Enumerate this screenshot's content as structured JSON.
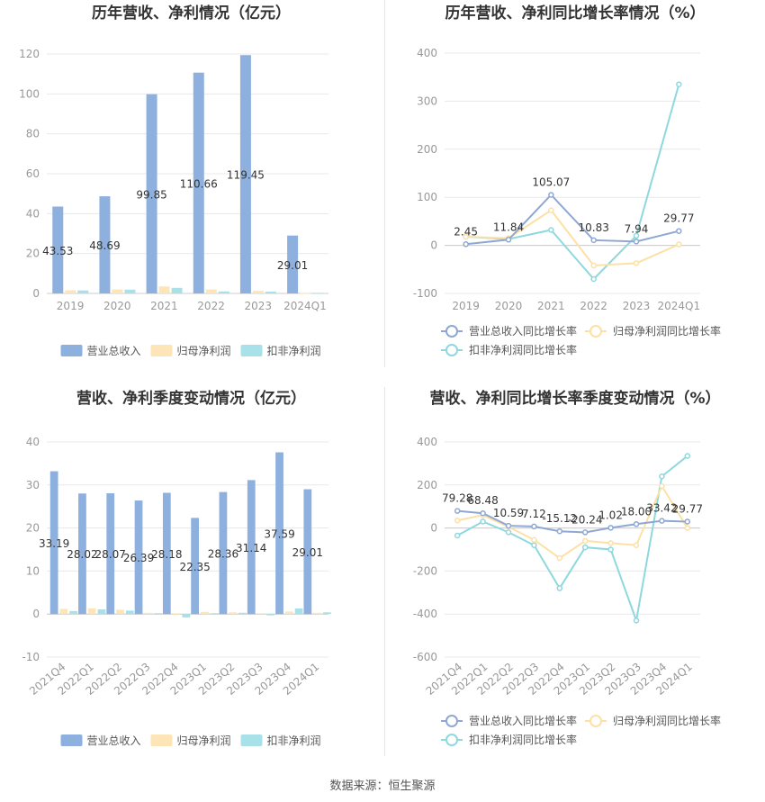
{
  "source": "数据来源：恒生聚源",
  "colors": {
    "revenue": "#8eb0de",
    "net_profit": "#fde5b8",
    "deducted_profit": "#a9e1e8",
    "line_revenue": "#8ea8d3",
    "line_net": "#fde0a6",
    "line_deducted": "#8ed8de",
    "grid": "#e8e8e8",
    "axis_text": "#999999",
    "title": "#333333"
  },
  "chart_data": [
    {
      "type": "bar",
      "title": "历年营收、净利情况（亿元）",
      "categories": [
        "2019",
        "2020",
        "2021",
        "2022",
        "2023",
        "2024Q1"
      ],
      "ylim": [
        0,
        120
      ],
      "yticks": [
        0,
        20,
        40,
        60,
        80,
        100,
        120
      ],
      "series": [
        {
          "name": "营业总收入",
          "values": [
            43.53,
            48.69,
            99.85,
            110.66,
            119.45,
            29.01
          ],
          "labels": [
            "43.53",
            "48.69",
            "99.85",
            "110.66",
            "119.45",
            "29.01"
          ]
        },
        {
          "name": "归母净利润",
          "values": [
            1.6,
            2.0,
            3.5,
            2.0,
            1.3,
            0.3
          ]
        },
        {
          "name": "扣非净利润",
          "values": [
            1.5,
            1.9,
            2.8,
            1.0,
            0.9,
            0.3
          ]
        }
      ],
      "legend_position": "bottom"
    },
    {
      "type": "line",
      "title": "历年营收、净利同比增长率情况（%）",
      "categories": [
        "2019",
        "2020",
        "2021",
        "2022",
        "2023",
        "2024Q1"
      ],
      "ylim": [
        -100,
        400
      ],
      "yticks": [
        -100,
        0,
        100,
        200,
        300,
        400
      ],
      "series": [
        {
          "name": "营业总收入同比增长率",
          "values": [
            2.45,
            11.84,
            105.07,
            10.83,
            7.94,
            29.77
          ],
          "labels": [
            "2.45",
            "11.84",
            "105.07",
            "10.83",
            "7.94",
            "29.77"
          ]
        },
        {
          "name": "归母净利润同比增长率",
          "values": [
            18,
            15,
            73,
            -42,
            -37,
            2
          ]
        },
        {
          "name": "扣非净利润同比增长率",
          "values": [
            18,
            13,
            32,
            -70,
            20,
            335
          ]
        }
      ],
      "legend_position": "bottom"
    },
    {
      "type": "bar",
      "title": "营收、净利季度变动情况（亿元）",
      "categories": [
        "2021Q4",
        "2022Q1",
        "2022Q2",
        "2022Q3",
        "2022Q4",
        "2023Q1",
        "2023Q2",
        "2023Q3",
        "2023Q4",
        "2024Q1"
      ],
      "ylim": [
        -10,
        40
      ],
      "yticks": [
        -10,
        0,
        10,
        20,
        30,
        40
      ],
      "series": [
        {
          "name": "营业总收入",
          "values": [
            33.19,
            28.02,
            28.07,
            26.39,
            28.18,
            22.35,
            28.36,
            31.14,
            37.59,
            29.01
          ],
          "labels": [
            "33.19",
            "28.02",
            "28.07",
            "26.39",
            "28.18",
            "22.35",
            "28.36",
            "31.14",
            "37.59",
            "29.01"
          ]
        },
        {
          "name": "归母净利润",
          "values": [
            1.2,
            1.3,
            1.0,
            0.3,
            -0.2,
            0.5,
            0.4,
            0.2,
            0.6,
            0.3
          ]
        },
        {
          "name": "扣非净利润",
          "values": [
            0.7,
            1.1,
            0.8,
            0.2,
            -0.8,
            0.2,
            0.3,
            -0.3,
            1.3,
            0.4
          ]
        }
      ],
      "legend_position": "bottom"
    },
    {
      "type": "line",
      "title": "营收、净利同比增长率季度变动情况（%）",
      "categories": [
        "2021Q4",
        "2022Q1",
        "2022Q2",
        "2022Q3",
        "2022Q4",
        "2023Q1",
        "2023Q2",
        "2023Q3",
        "2023Q4",
        "2024Q1"
      ],
      "ylim": [
        -600,
        400
      ],
      "yticks": [
        -600,
        -400,
        -200,
        0,
        200,
        400
      ],
      "series": [
        {
          "name": "营业总收入同比增长率",
          "values": [
            79.28,
            68.48,
            10.59,
            7.12,
            -15.12,
            -20.24,
            1.02,
            18.0,
            33.42,
            29.77
          ],
          "labels": [
            "79.28",
            "68.48",
            "10.59",
            "7.12",
            "-15.12",
            "-20.24",
            "1.02",
            "18.00",
            "33.42",
            "29.77"
          ]
        },
        {
          "name": "归母净利润同比增长率",
          "values": [
            35,
            60,
            5,
            -55,
            -140,
            -60,
            -70,
            -80,
            195,
            0
          ]
        },
        {
          "name": "扣非净利润同比增长率",
          "values": [
            -35,
            30,
            -20,
            -80,
            -280,
            -90,
            -100,
            -430,
            240,
            335
          ]
        }
      ],
      "legend_position": "bottom"
    }
  ]
}
